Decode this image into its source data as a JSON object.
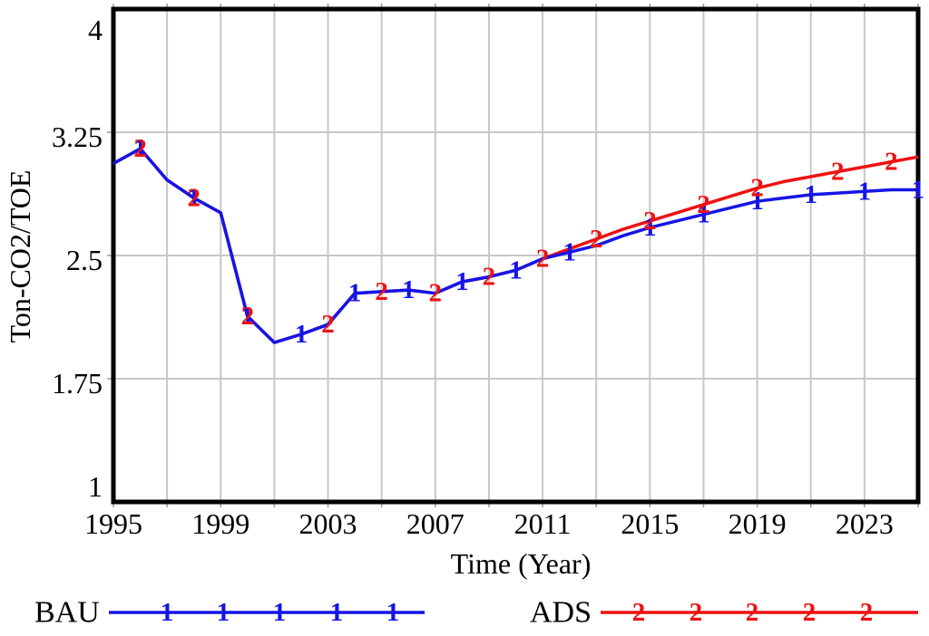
{
  "chart_data": {
    "type": "line",
    "title": "",
    "xlabel": "Time (Year)",
    "ylabel": "Ton-CO2/TOE",
    "xlim": [
      1995,
      2025
    ],
    "ylim": [
      1,
      4
    ],
    "grid": true,
    "grid_step_years": 2,
    "grid_color": "#c7c7c7",
    "frame_color": "#000000",
    "x_tick_years": [
      1995,
      1999,
      2003,
      2007,
      2011,
      2015,
      2019,
      2023
    ],
    "x_tick_labels": [
      "1995",
      "1999",
      "2003",
      "2007",
      "2011",
      "2015",
      "2019",
      "2023"
    ],
    "y_tick_values": [
      1,
      1.75,
      2.5,
      3.25,
      4
    ],
    "y_tick_labels": [
      "1",
      "1.75",
      "2.5",
      "3.25",
      "4"
    ],
    "x": [
      1995,
      1996,
      1997,
      1998,
      1999,
      2000,
      2001,
      2002,
      2003,
      2004,
      2005,
      2006,
      2007,
      2008,
      2009,
      2010,
      2011,
      2012,
      2013,
      2014,
      2015,
      2016,
      2017,
      2018,
      2019,
      2020,
      2021,
      2022,
      2023,
      2024,
      2025
    ],
    "series": [
      {
        "name": "ADS",
        "marker": "2",
        "color": "#ee1111",
        "values": [
          3.06,
          3.15,
          2.96,
          2.85,
          2.76,
          2.13,
          1.97,
          2.02,
          2.08,
          2.27,
          2.28,
          2.29,
          2.27,
          2.34,
          2.37,
          2.41,
          2.48,
          2.54,
          2.6,
          2.66,
          2.71,
          2.76,
          2.81,
          2.86,
          2.91,
          2.95,
          2.98,
          3.01,
          3.04,
          3.07,
          3.1
        ],
        "marker_years": [
          1996,
          1998,
          2000,
          2003,
          2005,
          2007,
          2009,
          2011,
          2013,
          2015,
          2017,
          2019,
          2022,
          2024
        ]
      },
      {
        "name": "BAU",
        "marker": "1",
        "color": "#1515e6",
        "values": [
          3.06,
          3.15,
          2.96,
          2.85,
          2.76,
          2.13,
          1.97,
          2.02,
          2.08,
          2.27,
          2.28,
          2.29,
          2.27,
          2.34,
          2.37,
          2.41,
          2.48,
          2.52,
          2.56,
          2.62,
          2.67,
          2.71,
          2.75,
          2.79,
          2.83,
          2.85,
          2.87,
          2.88,
          2.89,
          2.9,
          2.9
        ],
        "marker_years": [
          1996,
          1998,
          2000,
          2002,
          2004,
          2006,
          2008,
          2010,
          2012,
          2015,
          2017,
          2019,
          2021,
          2023,
          2025
        ]
      }
    ],
    "legend": {
      "position": "bottom",
      "entries": [
        {
          "label": "BAU",
          "marker": "1",
          "color": "#1515e6"
        },
        {
          "label": "ADS",
          "marker": "2",
          "color": "#ee1111"
        }
      ]
    }
  }
}
